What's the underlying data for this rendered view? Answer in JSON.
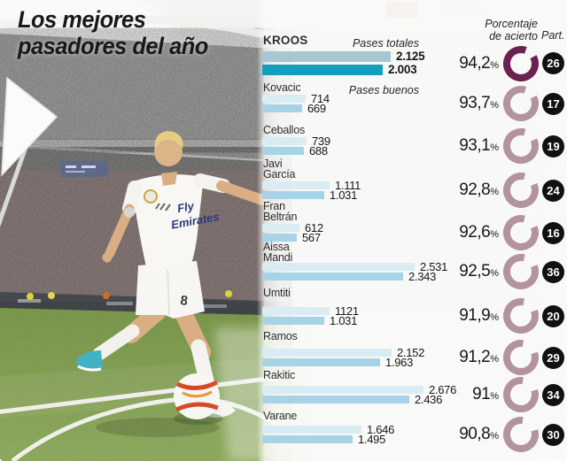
{
  "title": {
    "line1": "Los mejores",
    "line2": "pasadores del año"
  },
  "header": {
    "accuracy_label_line1": "Porcentaje",
    "accuracy_label_line2": "de acierto",
    "participation_label": "Part."
  },
  "legend": {
    "total_passes": "Pases totales",
    "good_passes": "Pases buenos"
  },
  "photo": {
    "jersey_sponsor_line1": "Fly",
    "jersey_sponsor_line2": "Emirates",
    "shorts_number": "8"
  },
  "colors": {
    "bar_total": "#d9ecf4",
    "bar_good": "#a6d4e6",
    "bar_total_highlight": "#a9c7d3",
    "bar_good_highlight": "#129fbb",
    "ring": "#b2939f",
    "ring_highlight": "#6b2153",
    "badge_bg": "#111111",
    "badge_text": "#ffffff"
  },
  "chart_data": {
    "type": "bar",
    "title": "Los mejores pasadores del año",
    "series_labels": [
      "Pases totales",
      "Pases buenos"
    ],
    "value_unit": "pases",
    "accuracy_unit": "%",
    "players": [
      {
        "name": "Kroos",
        "display_name": "KROOS",
        "pases_totales": 2125,
        "pases_totales_label": "2.125",
        "pases_buenos": 2003,
        "pases_buenos_label": "2.003",
        "acierto_pct": 94.2,
        "acierto_label": "94,2",
        "partidos": 26,
        "highlight": true
      },
      {
        "name": "Kovacic",
        "display_name": "Kovacic",
        "pases_totales": 714,
        "pases_totales_label": "714",
        "pases_buenos": 669,
        "pases_buenos_label": "669",
        "acierto_pct": 93.7,
        "acierto_label": "93,7",
        "partidos": 17,
        "highlight": false
      },
      {
        "name": "Ceballos",
        "display_name": "Ceballos",
        "pases_totales": 739,
        "pases_totales_label": "739",
        "pases_buenos": 688,
        "pases_buenos_label": "688",
        "acierto_pct": 93.1,
        "acierto_label": "93,1",
        "partidos": 19,
        "highlight": false
      },
      {
        "name": "Javi García",
        "display_name": "Javi\nGarcía",
        "pases_totales": 1111,
        "pases_totales_label": "1.111",
        "pases_buenos": 1031,
        "pases_buenos_label": "1.031",
        "acierto_pct": 92.8,
        "acierto_label": "92,8",
        "partidos": 24,
        "highlight": false
      },
      {
        "name": "Fran Beltrán",
        "display_name": "Fran\nBeltrán",
        "pases_totales": 612,
        "pases_totales_label": "612",
        "pases_buenos": 567,
        "pases_buenos_label": "567",
        "acierto_pct": 92.6,
        "acierto_label": "92,6",
        "partidos": 16,
        "highlight": false
      },
      {
        "name": "Aissa Mandi",
        "display_name": "Aissa\nMandi",
        "pases_totales": 2531,
        "pases_totales_label": "2.531",
        "pases_buenos": 2343,
        "pases_buenos_label": "2.343",
        "acierto_pct": 92.5,
        "acierto_label": "92,5",
        "partidos": 36,
        "highlight": false
      },
      {
        "name": "Umtiti",
        "display_name": "Umtiti",
        "pases_totales": 1121,
        "pases_totales_label": "1121",
        "pases_buenos": 1031,
        "pases_buenos_label": "1.031",
        "acierto_pct": 91.9,
        "acierto_label": "91,9",
        "partidos": 20,
        "highlight": false
      },
      {
        "name": "Ramos",
        "display_name": "Ramos",
        "pases_totales": 2152,
        "pases_totales_label": "2.152",
        "pases_buenos": 1963,
        "pases_buenos_label": "1.963",
        "acierto_pct": 91.2,
        "acierto_label": "91,2",
        "partidos": 29,
        "highlight": false
      },
      {
        "name": "Rakitic",
        "display_name": "Rakitic",
        "pases_totales": 2676,
        "pases_totales_label": "2.676",
        "pases_buenos": 2436,
        "pases_buenos_label": "2.436",
        "acierto_pct": 91.0,
        "acierto_label": "91",
        "partidos": 34,
        "highlight": false
      },
      {
        "name": "Varane",
        "display_name": "Varane",
        "pases_totales": 1646,
        "pases_totales_label": "1.646",
        "pases_buenos": 1495,
        "pases_buenos_label": "1.495",
        "acierto_pct": 90.8,
        "acierto_label": "90,8",
        "partidos": 30,
        "highlight": false
      }
    ]
  }
}
